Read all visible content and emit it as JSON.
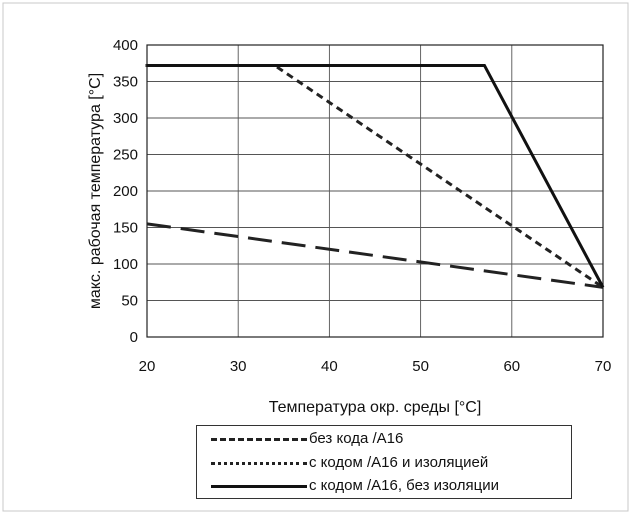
{
  "chart_data": {
    "type": "line",
    "title": "",
    "xlabel": "Температура окр. среды [°C]",
    "ylabel": "макс. рабочая температура [°C]",
    "xlim": [
      20,
      70
    ],
    "ylim": [
      0,
      400
    ],
    "xticks": [
      "20",
      "30",
      "40",
      "50",
      "60",
      "70"
    ],
    "yticks": [
      "0",
      "50",
      "100",
      "150",
      "200",
      "250",
      "300",
      "350",
      "400"
    ],
    "grid": true,
    "legend_position": "bottom",
    "series": [
      {
        "name": "без кода /A16",
        "style": "dashed",
        "color": "#222222",
        "points": [
          [
            20,
            155
          ],
          [
            70,
            68
          ]
        ]
      },
      {
        "name": "с кодом /A16 и изоляцией",
        "style": "dotted",
        "color": "#222222",
        "points": [
          [
            20,
            372
          ],
          [
            34,
            372
          ],
          [
            70,
            68
          ]
        ]
      },
      {
        "name": "с кодом /A16, без изоляции",
        "style": "solid",
        "color": "#111111",
        "points": [
          [
            20,
            372
          ],
          [
            57,
            372
          ],
          [
            70,
            68
          ]
        ]
      }
    ]
  }
}
